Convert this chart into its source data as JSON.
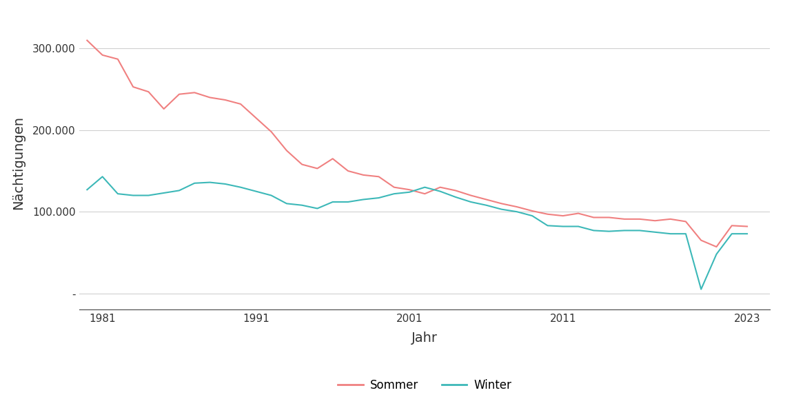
{
  "years": [
    1980,
    1981,
    1982,
    1983,
    1984,
    1985,
    1986,
    1987,
    1988,
    1989,
    1990,
    1991,
    1992,
    1993,
    1994,
    1995,
    1996,
    1997,
    1998,
    1999,
    2000,
    2001,
    2002,
    2003,
    2004,
    2005,
    2006,
    2007,
    2008,
    2009,
    2010,
    2011,
    2012,
    2013,
    2014,
    2015,
    2016,
    2017,
    2018,
    2019,
    2020,
    2021,
    2022,
    2023
  ],
  "sommer": [
    310000,
    292000,
    287000,
    253000,
    247000,
    226000,
    244000,
    246000,
    240000,
    237000,
    232000,
    215000,
    198000,
    175000,
    158000,
    153000,
    165000,
    150000,
    145000,
    143000,
    130000,
    127000,
    122000,
    130000,
    126000,
    120000,
    115000,
    110000,
    106000,
    101000,
    97000,
    95000,
    98000,
    93000,
    93000,
    91000,
    91000,
    89000,
    91000,
    88000,
    65000,
    57000,
    83000,
    82000
  ],
  "winter": [
    127000,
    143000,
    122000,
    120000,
    120000,
    123000,
    126000,
    135000,
    136000,
    134000,
    130000,
    125000,
    120000,
    110000,
    108000,
    104000,
    112000,
    112000,
    115000,
    117000,
    122000,
    124000,
    130000,
    125000,
    118000,
    112000,
    108000,
    103000,
    100000,
    95000,
    83000,
    82000,
    82000,
    77000,
    76000,
    77000,
    77000,
    75000,
    73000,
    73000,
    5000,
    48000,
    73000,
    73000
  ],
  "sommer_color": "#F08080",
  "winter_color": "#3CB8B8",
  "xlabel": "Jahr",
  "ylabel": "Nächtigungen",
  "xlim": [
    1979.5,
    2024.5
  ],
  "ylim": [
    -20000,
    340000
  ],
  "yticks": [
    0,
    100000,
    200000,
    300000
  ],
  "ytick_labels": [
    "-",
    "100.000",
    "200.000",
    "300.000"
  ],
  "xticks": [
    1981,
    1991,
    2001,
    2011,
    2023
  ],
  "background_color": "#ffffff",
  "panel_color": "#ffffff",
  "grid_color": "#d0d0d0",
  "legend_labels": [
    "Sommer",
    "Winter"
  ],
  "linewidth": 1.5
}
